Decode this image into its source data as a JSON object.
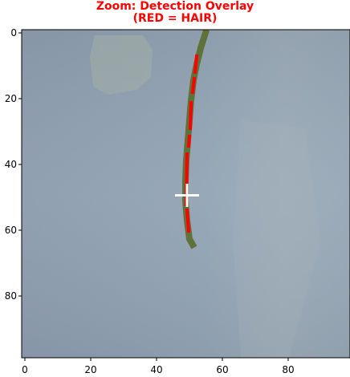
{
  "title": {
    "line1": "Zoom: Detection Overlay",
    "line2": "(RED = HAIR)"
  },
  "image": {
    "description_colors": {
      "background": "#8fa0b1",
      "hair_edge": "#5f6f2a",
      "hair_core": "#ff0000",
      "crosshair": "#ffffff",
      "title": "#ff0000"
    },
    "x_ticks": [
      0,
      20,
      40,
      60,
      80
    ],
    "y_ticks": [
      0,
      20,
      40,
      60,
      80
    ],
    "axis_range": {
      "x": [
        0,
        99
      ],
      "y": [
        0,
        99
      ]
    },
    "crosshair": {
      "x": 50,
      "y": 50
    }
  }
}
